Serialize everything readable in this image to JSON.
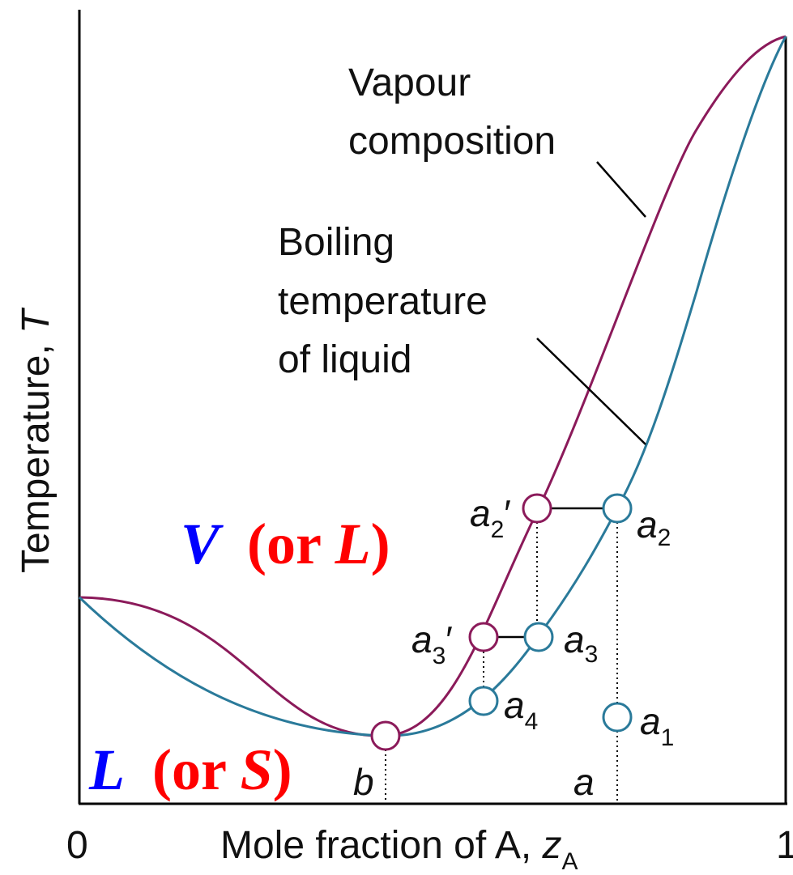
{
  "axes": {
    "y_label": "Temperature, ",
    "y_label_var": "T",
    "x_label": "Mole fraction of A, ",
    "x_label_var": "z",
    "x_label_sub": "A",
    "x_tick_min": "0",
    "x_tick_max": "1"
  },
  "curve_labels": {
    "vapour_line1": "Vapour",
    "vapour_line2": "composition",
    "liquid_line1": "Boiling",
    "liquid_line2": "temperature",
    "liquid_line3": "of liquid"
  },
  "region_labels": {
    "upper_main": "V",
    "upper_alt_open": "(or ",
    "upper_alt_var": "L",
    "upper_alt_close": ")",
    "lower_main": "L",
    "lower_alt_open": "(or ",
    "lower_alt_var": "S",
    "lower_alt_close": ")"
  },
  "points": {
    "a2p": {
      "base": "a",
      "sub": "2",
      "prime": "′"
    },
    "a2": {
      "base": "a",
      "sub": "2"
    },
    "a3p": {
      "base": "a",
      "sub": "3",
      "prime": "′"
    },
    "a3": {
      "base": "a",
      "sub": "3"
    },
    "a4": {
      "base": "a",
      "sub": "4"
    },
    "a1": {
      "base": "a",
      "sub": "1"
    },
    "b": {
      "base": "b"
    },
    "a": {
      "base": "a"
    }
  },
  "colors": {
    "vapour_curve": "#8b1a5a",
    "liquid_curve": "#2a7a9a",
    "region_main": "#0000ff",
    "region_alt": "#ff0000",
    "axis": "#000000"
  }
}
